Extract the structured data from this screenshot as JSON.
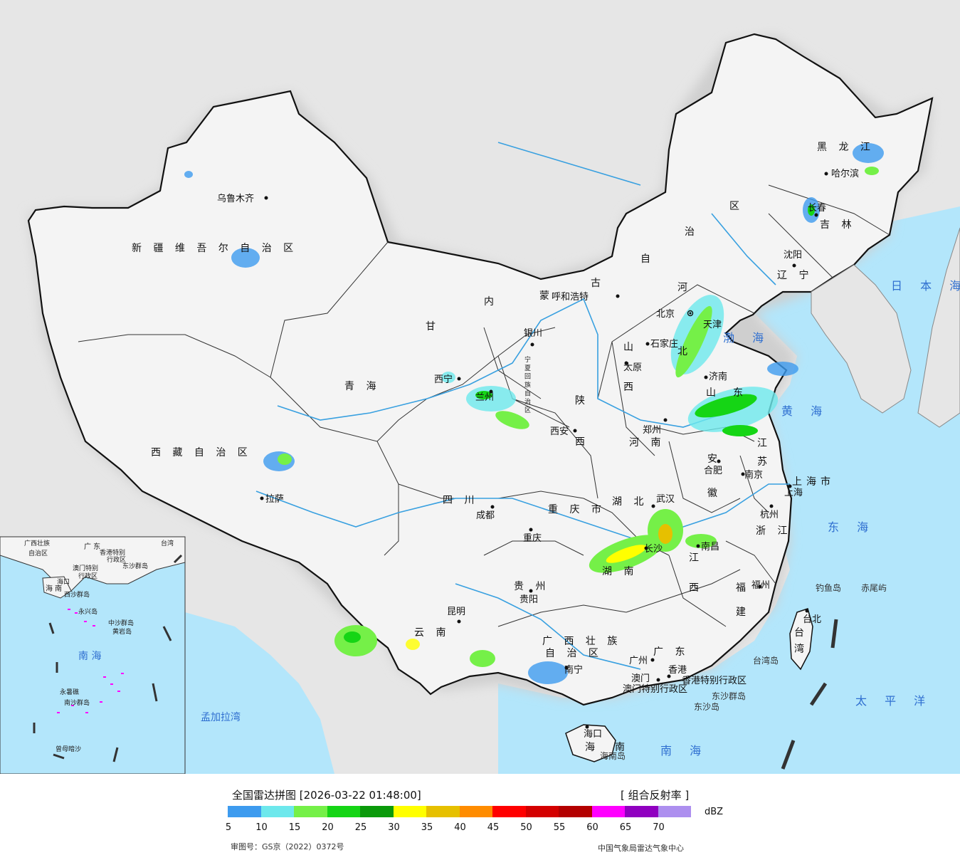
{
  "header": {
    "title": "全国雷达拼图 [2026-03-22 01:48:00]",
    "product": "[ 组合反射率 ]",
    "unit": "dBZ",
    "approval": "审图号：GS京（2022）0372号",
    "source": "中国气象局雷达气象中心"
  },
  "legend": {
    "ticks": [
      "5",
      "10",
      "15",
      "20",
      "25",
      "30",
      "35",
      "40",
      "45",
      "50",
      "55",
      "60",
      "65",
      "70"
    ],
    "colors": [
      "#3d9bef",
      "#6de8ec",
      "#75f048",
      "#15d515",
      "#0a9a0a",
      "#ffff00",
      "#e6c000",
      "#ff8c00",
      "#ff0000",
      "#d40000",
      "#b40000",
      "#ff00ff",
      "#9000c0",
      "#ad8fef"
    ]
  },
  "map": {
    "colors": {
      "land": "#f2f2f2",
      "sea": "#b3e6fb",
      "outside": "#e6e6e6",
      "border": "#111111",
      "river": "#38a0e0"
    },
    "provinces": [
      "新 疆 维 吾 尔 自 治 区",
      "西 藏 自 治 区",
      "青 海",
      "甘",
      "内",
      "蒙",
      "古",
      "自",
      "治",
      "区",
      "黑 龙 江",
      "吉 林",
      "辽 宁",
      "河",
      "北",
      "山",
      "西",
      "陕",
      "西",
      "四 川",
      "重 庆 市",
      "湖 北",
      "湖 南",
      "贵 州",
      "云 南",
      "广 西 壮 族",
      "自 治 区",
      "广 东",
      "江",
      "西",
      "安",
      "徽",
      "江",
      "苏",
      "浙 江",
      "福",
      "建",
      "山",
      "东",
      "河 南",
      "海",
      "南",
      "台",
      "湾",
      "宁 夏 回 族 自 治 区"
    ],
    "cities": [
      "乌鲁木齐",
      "拉萨",
      "西宁",
      "兰州",
      "银川",
      "呼和浩特",
      "北京",
      "天津",
      "石家庄",
      "太原",
      "济南",
      "郑州",
      "西安",
      "成都",
      "重庆",
      "武汉",
      "长沙",
      "南昌",
      "合肥",
      "南京",
      "上海",
      "杭州",
      "福州",
      "台北",
      "贵阳",
      "昆明",
      "南宁",
      "广州",
      "澳门",
      "香港",
      "海口",
      "沈阳",
      "长春",
      "哈尔滨"
    ],
    "seas": [
      "日 本 海",
      "渤 海",
      "黄 海",
      "东 海",
      "南 海",
      "太 平 洋",
      "孟加拉湾"
    ],
    "islands": [
      "钓鱼岛",
      "赤尾屿",
      "台湾岛",
      "东沙群岛",
      "东沙岛",
      "海南岛",
      "上海市",
      "香港特别行政区",
      "澳门特别行政区"
    ],
    "inset_labels": [
      "广 东",
      "澳门特别",
      "行政区",
      "香港特别",
      "行政区",
      "东沙群岛",
      "海 南",
      "海口",
      "西沙群岛",
      "永兴岛",
      "中沙群岛",
      "黄岩岛",
      "南 海",
      "永暑礁",
      "南沙群岛",
      "曾母暗沙",
      "台湾",
      "广西壮族",
      "自治区"
    ]
  }
}
